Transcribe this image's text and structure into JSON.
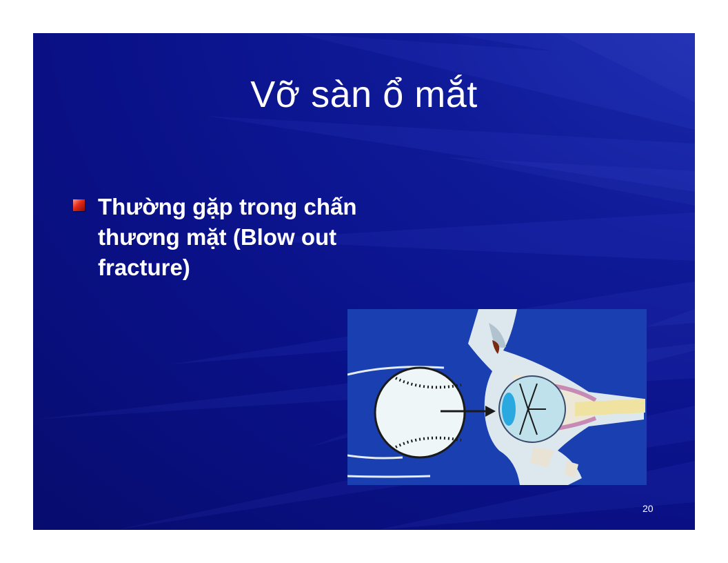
{
  "slide": {
    "title": "Vỡ sàn ổ mắt",
    "bullets": [
      {
        "text": "Thường gặp trong chấn thương mặt (Blow out fracture)"
      }
    ],
    "figure": {
      "icon": "blow-out-fracture-illustration"
    },
    "page_number": "20"
  },
  "colors": {
    "background": "#0a1188",
    "title": "#ffffff",
    "bullet_marker": "#d8321f",
    "figure_background": "#1a3fb0"
  }
}
